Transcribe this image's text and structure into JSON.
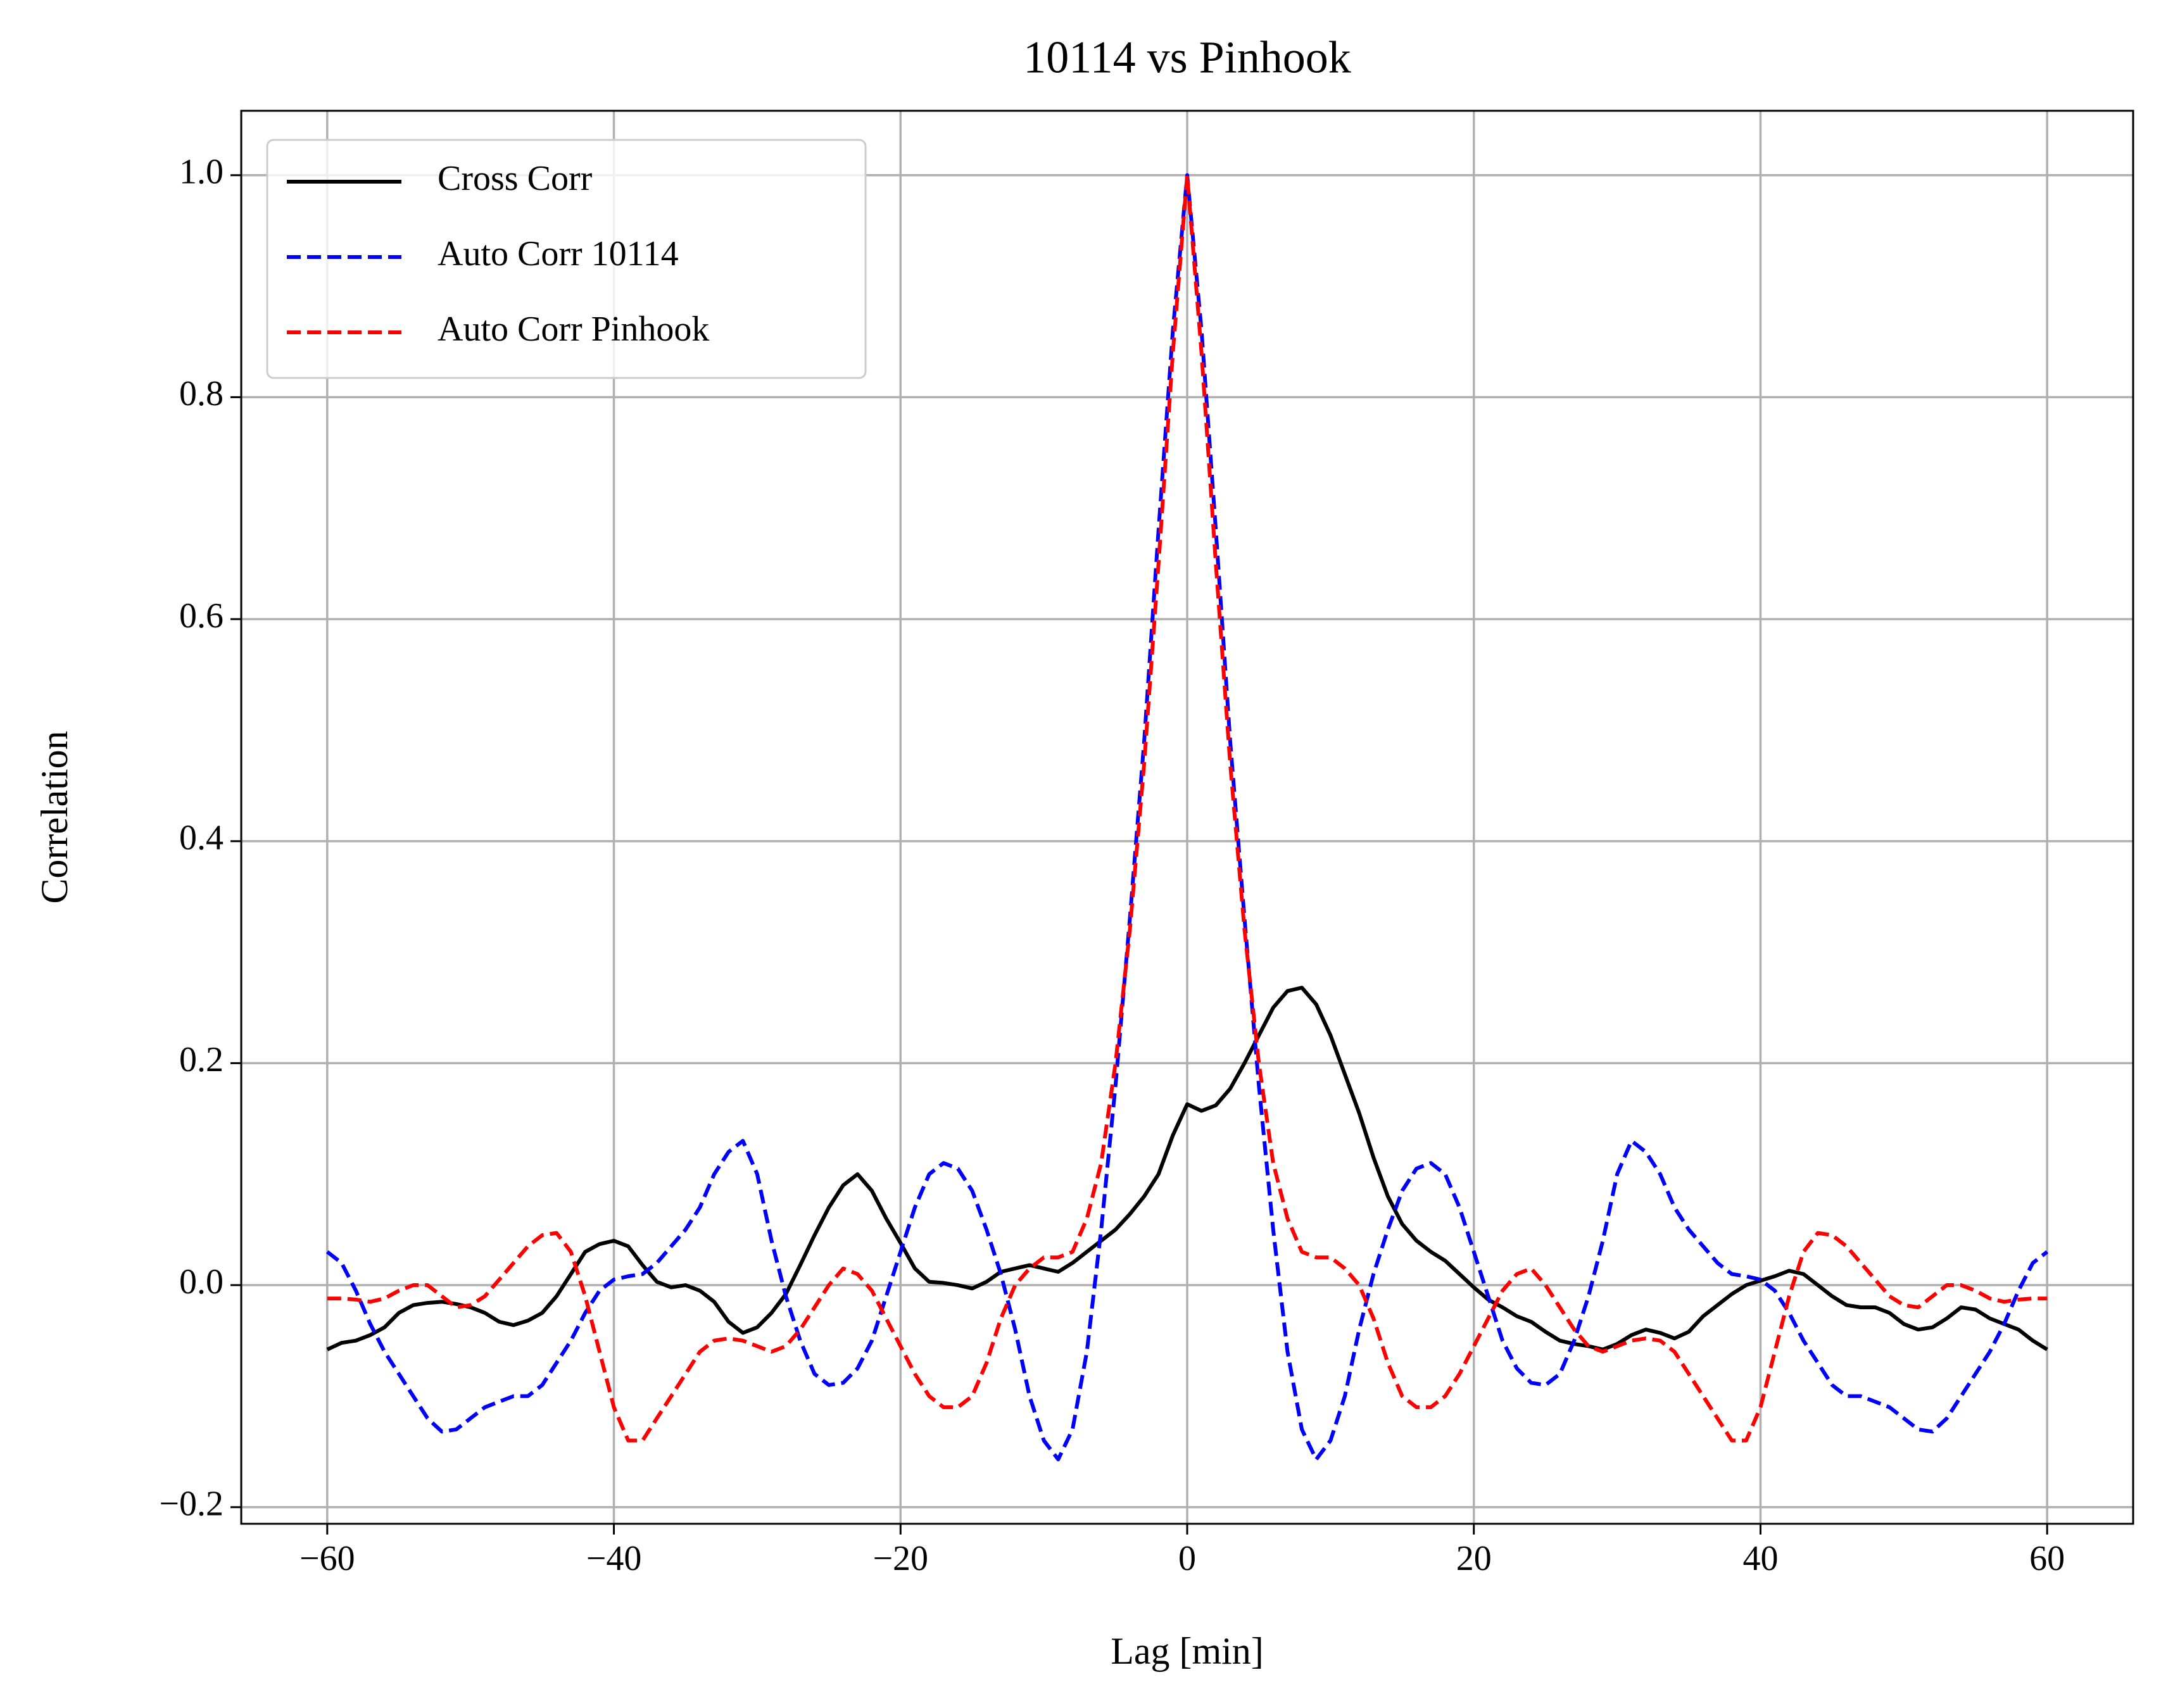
{
  "chart_data": {
    "type": "line",
    "title": "10114 vs Pinhook",
    "x_label": "Lag [min]",
    "y_label": "Correlation",
    "xlim": [
      -66,
      66
    ],
    "ylim": [
      -0.215,
      1.058
    ],
    "xticks": [
      {
        "value": -60,
        "label": "−60"
      },
      {
        "value": -40,
        "label": "−40"
      },
      {
        "value": -20,
        "label": "−20"
      },
      0,
      20,
      40,
      60
    ],
    "yticks": [
      {
        "value": -0.2,
        "label": "−0.2"
      },
      {
        "value": 0,
        "label": "0.0"
      },
      0.2,
      0.4,
      0.6,
      0.8,
      {
        "value": 1,
        "label": "1.0"
      }
    ],
    "grid": true,
    "legend": "upper left",
    "x": [
      -60,
      -59,
      -58,
      -57,
      -56,
      -55,
      -54,
      -53,
      -52,
      -51,
      -50,
      -49,
      -48,
      -47,
      -46,
      -45,
      -44,
      -43,
      -42,
      -41,
      -40,
      -39,
      -38,
      -37,
      -36,
      -35,
      -34,
      -33,
      -32,
      -31,
      -30,
      -29,
      -28,
      -27,
      -26,
      -25,
      -24,
      -23,
      -22,
      -21,
      -20,
      -19,
      -18,
      -17,
      -16,
      -15,
      -14,
      -13,
      -12,
      -11,
      -10,
      -9,
      -8,
      -7,
      -6,
      -5,
      -4,
      -3,
      -2,
      -1,
      0,
      1,
      2,
      3,
      4,
      5,
      6,
      7,
      8,
      9,
      10,
      11,
      12,
      13,
      14,
      15,
      16,
      17,
      18,
      19,
      20,
      21,
      22,
      23,
      24,
      25,
      26,
      27,
      28,
      29,
      30,
      31,
      32,
      33,
      34,
      35,
      36,
      37,
      38,
      39,
      40,
      41,
      42,
      43,
      44,
      45,
      46,
      47,
      48,
      49,
      50,
      51,
      52,
      53,
      54,
      55,
      56,
      57,
      58,
      59,
      60
    ],
    "series": [
      {
        "name": "Cross Corr",
        "color": "#000000",
        "dash": false,
        "values": [
          -0.058,
          -0.052,
          -0.05,
          -0.045,
          -0.038,
          -0.025,
          -0.018,
          -0.016,
          -0.015,
          -0.017,
          -0.02,
          -0.025,
          -0.033,
          -0.036,
          -0.032,
          -0.025,
          -0.01,
          0.01,
          0.03,
          0.037,
          0.04,
          0.035,
          0.018,
          0.003,
          -0.002,
          0.0,
          -0.005,
          -0.015,
          -0.033,
          -0.043,
          -0.038,
          -0.025,
          -0.008,
          0.018,
          0.045,
          0.07,
          0.09,
          0.1,
          0.085,
          0.06,
          0.038,
          0.015,
          0.003,
          0.002,
          0.0,
          -0.003,
          0.003,
          0.012,
          0.015,
          0.018,
          0.015,
          0.012,
          0.02,
          0.03,
          0.04,
          0.05,
          0.064,
          0.08,
          0.1,
          0.135,
          0.163,
          0.157,
          0.162,
          0.177,
          0.2,
          0.225,
          0.25,
          0.265,
          0.268,
          0.253,
          0.225,
          0.19,
          0.155,
          0.115,
          0.08,
          0.055,
          0.04,
          0.03,
          0.022,
          0.01,
          -0.002,
          -0.013,
          -0.02,
          -0.028,
          -0.033,
          -0.042,
          -0.05,
          -0.053,
          -0.055,
          -0.058,
          -0.053,
          -0.045,
          -0.04,
          -0.043,
          -0.048,
          -0.042,
          -0.028,
          -0.018,
          -0.008,
          0.0,
          0.004,
          0.008,
          0.013,
          0.01,
          0.0,
          -0.01,
          -0.018,
          -0.02,
          -0.02,
          -0.025,
          -0.035,
          -0.04,
          -0.038,
          -0.03,
          -0.02,
          -0.022,
          -0.03,
          -0.035,
          -0.04,
          -0.05,
          -0.058
        ]
      },
      {
        "name": "Auto Corr 10114",
        "color": "#0000ff",
        "dash": true,
        "values": [
          0.03,
          0.02,
          -0.005,
          -0.035,
          -0.06,
          -0.08,
          -0.1,
          -0.12,
          -0.132,
          -0.13,
          -0.12,
          -0.11,
          -0.105,
          -0.1,
          -0.1,
          -0.09,
          -0.07,
          -0.05,
          -0.025,
          -0.005,
          0.005,
          0.008,
          0.01,
          0.02,
          0.035,
          0.05,
          0.07,
          0.1,
          0.12,
          0.13,
          0.1,
          0.04,
          -0.01,
          -0.05,
          -0.08,
          -0.09,
          -0.088,
          -0.075,
          -0.05,
          -0.01,
          0.03,
          0.07,
          0.1,
          0.11,
          0.105,
          0.085,
          0.05,
          0.01,
          -0.04,
          -0.1,
          -0.14,
          -0.157,
          -0.13,
          -0.06,
          0.05,
          0.18,
          0.33,
          0.49,
          0.68,
          0.86,
          1.0,
          0.86,
          0.68,
          0.49,
          0.33,
          0.18,
          0.05,
          -0.06,
          -0.13,
          -0.157,
          -0.14,
          -0.1,
          -0.04,
          0.01,
          0.05,
          0.085,
          0.105,
          0.11,
          0.1,
          0.07,
          0.03,
          -0.01,
          -0.05,
          -0.075,
          -0.088,
          -0.09,
          -0.08,
          -0.05,
          -0.01,
          0.04,
          0.1,
          0.13,
          0.12,
          0.1,
          0.07,
          0.05,
          0.035,
          0.02,
          0.01,
          0.008,
          0.005,
          -0.005,
          -0.025,
          -0.05,
          -0.07,
          -0.09,
          -0.1,
          -0.1,
          -0.105,
          -0.11,
          -0.12,
          -0.13,
          -0.132,
          -0.12,
          -0.1,
          -0.08,
          -0.06,
          -0.035,
          -0.005,
          0.02,
          0.03
        ]
      },
      {
        "name": "Auto Corr Pinhook",
        "color": "#ff0000",
        "dash": true,
        "values": [
          -0.012,
          -0.012,
          -0.013,
          -0.015,
          -0.012,
          -0.005,
          0.0,
          0.0,
          -0.01,
          -0.02,
          -0.018,
          -0.01,
          0.005,
          0.02,
          0.035,
          0.045,
          0.047,
          0.03,
          -0.01,
          -0.06,
          -0.11,
          -0.14,
          -0.14,
          -0.12,
          -0.1,
          -0.08,
          -0.06,
          -0.05,
          -0.048,
          -0.05,
          -0.055,
          -0.06,
          -0.055,
          -0.04,
          -0.02,
          0.0,
          0.015,
          0.01,
          -0.005,
          -0.03,
          -0.055,
          -0.08,
          -0.1,
          -0.11,
          -0.11,
          -0.1,
          -0.07,
          -0.03,
          0.0,
          0.015,
          0.025,
          0.025,
          0.03,
          0.06,
          0.11,
          0.2,
          0.32,
          0.47,
          0.65,
          0.84,
          1.0,
          0.84,
          0.65,
          0.47,
          0.32,
          0.2,
          0.11,
          0.06,
          0.03,
          0.025,
          0.025,
          0.015,
          0.0,
          -0.03,
          -0.07,
          -0.1,
          -0.11,
          -0.11,
          -0.1,
          -0.08,
          -0.055,
          -0.03,
          -0.005,
          0.01,
          0.015,
          0.0,
          -0.02,
          -0.04,
          -0.055,
          -0.06,
          -0.055,
          -0.05,
          -0.048,
          -0.05,
          -0.06,
          -0.08,
          -0.1,
          -0.12,
          -0.14,
          -0.14,
          -0.11,
          -0.06,
          -0.01,
          0.03,
          0.047,
          0.045,
          0.035,
          0.02,
          0.005,
          -0.01,
          -0.018,
          -0.02,
          -0.01,
          0.0,
          0.0,
          -0.005,
          -0.012,
          -0.015,
          -0.013,
          -0.012,
          -0.012
        ]
      }
    ]
  }
}
